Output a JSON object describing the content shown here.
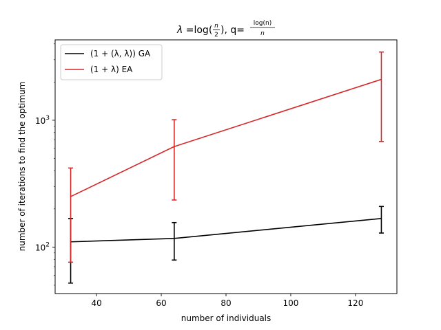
{
  "chart_data": {
    "type": "line",
    "title": {
      "lambda_sym": "λ",
      "eq1": "=log(",
      "frac1_num": "n",
      "frac1_den": "2",
      "mid": "), q=",
      "frac2_num": "log(n)",
      "frac2_den": "n"
    },
    "xlabel": "number of individuals",
    "ylabel": "number of iterations to find the optimum",
    "xlim": [
      27.2,
      132.8
    ],
    "ylim": [
      43,
      4300
    ],
    "yscale": "log",
    "x_ticks": [
      40,
      60,
      80,
      100,
      120
    ],
    "y_ticks": [
      {
        "value": 100,
        "base": "10",
        "exp": "2"
      },
      {
        "value": 1000,
        "base": "10",
        "exp": "3"
      }
    ],
    "grid": false,
    "legend_position": "upper-left",
    "x": [
      32,
      64,
      128
    ],
    "series": [
      {
        "name": "(1 + (λ, λ)) GA",
        "color": "#000000",
        "values": [
          110,
          117,
          168
        ],
        "err_low": [
          52,
          79,
          129
        ],
        "err_high": [
          168,
          156,
          209
        ]
      },
      {
        "name": "(1 + λ) EA",
        "color": "#d62728",
        "values": [
          250,
          620,
          2100
        ],
        "err_low": [
          76,
          235,
          680
        ],
        "err_high": [
          420,
          1010,
          3450
        ]
      }
    ]
  }
}
